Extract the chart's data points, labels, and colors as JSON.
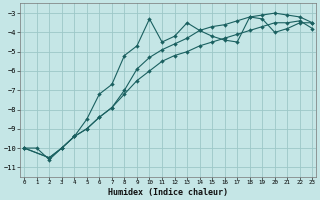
{
  "xlabel": "Humidex (Indice chaleur)",
  "bg_color": "#c5e6e6",
  "grid_color": "#9dc8c8",
  "line_color": "#1a6060",
  "xlim": [
    0,
    23
  ],
  "ylim": [
    -11.5,
    -2.5
  ],
  "yticks": [
    -3,
    -4,
    -5,
    -6,
    -7,
    -8,
    -9,
    -10,
    -11
  ],
  "xticks": [
    0,
    1,
    2,
    3,
    4,
    5,
    6,
    7,
    8,
    9,
    10,
    11,
    12,
    13,
    14,
    15,
    16,
    17,
    18,
    19,
    20,
    21,
    22,
    23
  ],
  "series1_x": [
    0,
    1,
    2,
    3,
    4,
    5,
    6,
    7,
    8,
    9,
    10,
    11,
    12,
    13,
    14,
    15,
    16,
    17,
    18,
    19,
    20,
    21,
    22,
    23
  ],
  "series1_y": [
    -10,
    -10,
    -10.6,
    -10.0,
    -9.4,
    -8.5,
    -7.2,
    -6.7,
    -5.2,
    -4.7,
    -3.3,
    -4.5,
    -4.2,
    -3.5,
    -3.9,
    -4.2,
    -4.4,
    -4.5,
    -3.2,
    -3.3,
    -4.0,
    -3.8,
    -3.5,
    -3.5
  ],
  "series2_x": [
    0,
    2,
    3,
    4,
    5,
    6,
    7,
    8,
    9,
    10,
    11,
    12,
    13,
    14,
    15,
    16,
    17,
    18,
    19,
    20,
    21,
    22,
    23
  ],
  "series2_y": [
    -10,
    -10.5,
    -10.0,
    -9.4,
    -9.0,
    -8.4,
    -7.9,
    -7.0,
    -5.9,
    -5.3,
    -4.9,
    -4.6,
    -4.3,
    -3.9,
    -3.7,
    -3.6,
    -3.4,
    -3.2,
    -3.1,
    -3.0,
    -3.1,
    -3.2,
    -3.5
  ],
  "series3_x": [
    0,
    2,
    3,
    4,
    5,
    6,
    7,
    8,
    9,
    10,
    11,
    12,
    13,
    14,
    15,
    16,
    17,
    18,
    19,
    20,
    21,
    22,
    23
  ],
  "series3_y": [
    -10,
    -10.5,
    -10.0,
    -9.4,
    -9.0,
    -8.4,
    -7.9,
    -7.2,
    -6.5,
    -6.0,
    -5.5,
    -5.2,
    -5.0,
    -4.7,
    -4.5,
    -4.3,
    -4.1,
    -3.9,
    -3.7,
    -3.5,
    -3.5,
    -3.4,
    -3.8
  ]
}
